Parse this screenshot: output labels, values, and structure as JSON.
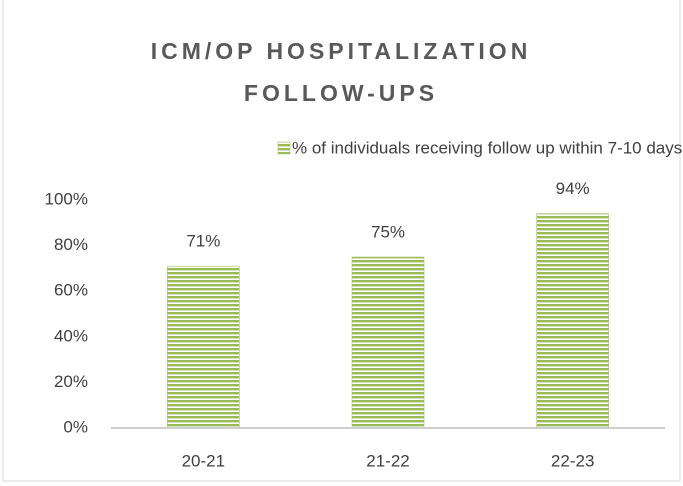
{
  "chart_data": {
    "type": "bar",
    "title": "ICM/OP HOSPITALIZATION FOLLOW-UPS",
    "categories": [
      "20-21",
      "21-22",
      "22-23"
    ],
    "series": [
      {
        "name": "% of individuals receiving follow up within 7-10 days",
        "color": "#9bbb59",
        "values": [
          71,
          75,
          94
        ],
        "value_labels": [
          "71%",
          "75%",
          "94%"
        ]
      }
    ],
    "ylim": [
      0,
      100
    ],
    "yticks": [
      {
        "value": 0,
        "label": "0%"
      },
      {
        "value": 20,
        "label": "20%"
      },
      {
        "value": 40,
        "label": "40%"
      },
      {
        "value": 60,
        "label": "60%"
      },
      {
        "value": 80,
        "label": "80%"
      },
      {
        "value": 100,
        "label": "100%"
      }
    ],
    "grid": false,
    "legend": "top"
  }
}
